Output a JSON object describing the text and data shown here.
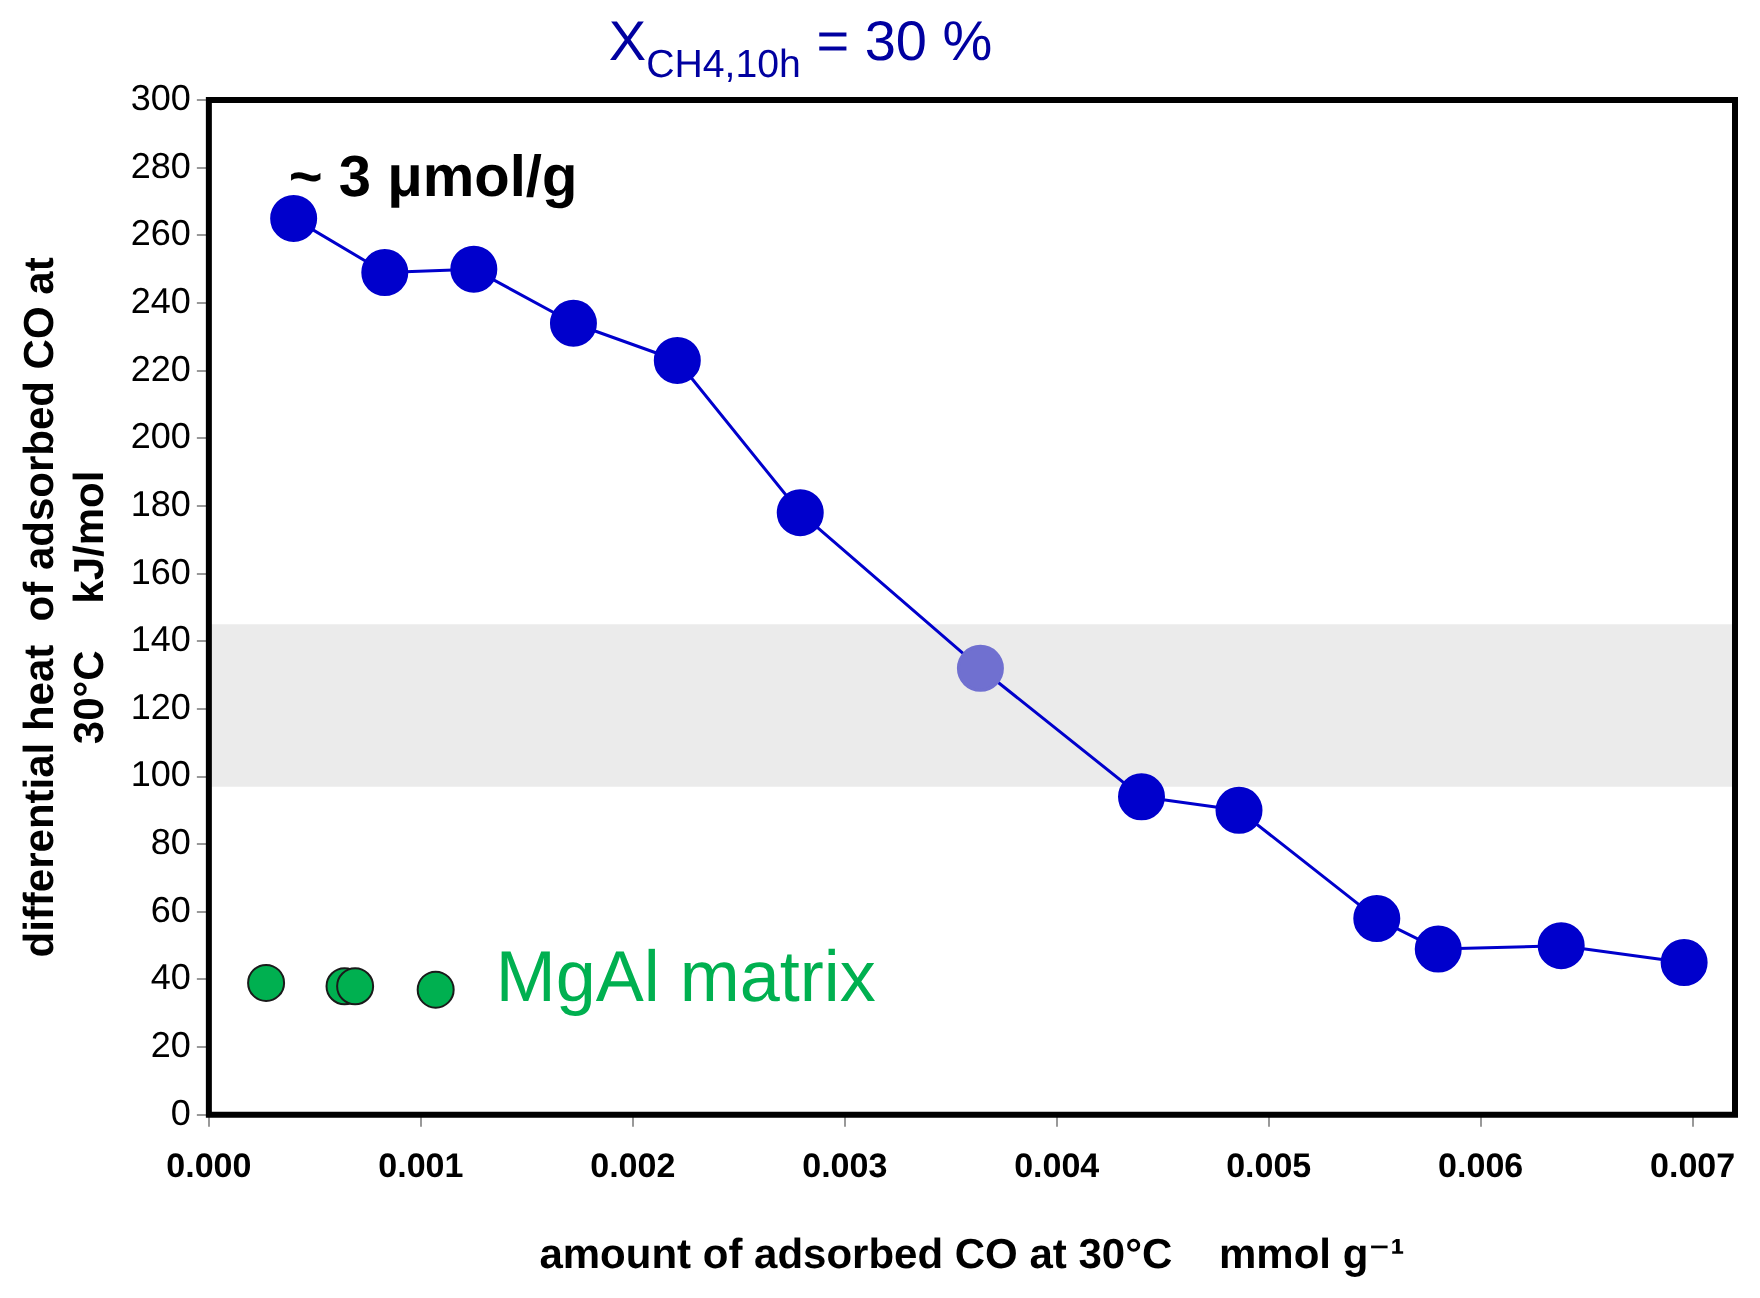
{
  "chart_data": {
    "type": "scatter",
    "xlabel": "amount of adsorbed CO at 30°C    mmol g⁻¹",
    "ylabel": "differential heat  of adsorbed CO at\n30°C    kJ/mol",
    "annotations": [
      "~ 3 μmol/g",
      "X$_{CH4,10h}$ = 30 %"
    ],
    "xlim": [
      0,
      0.0072
    ],
    "xticks": [
      {
        "value": 0,
        "label": "0.000"
      },
      {
        "value": 0.001,
        "label": "0.001"
      },
      {
        "value": 0.002,
        "label": "0.002"
      },
      {
        "value": 0.003,
        "label": "0.003"
      },
      {
        "value": 0.004,
        "label": "0.004"
      },
      {
        "value": 0.005,
        "label": "0.005"
      },
      {
        "value": 0.006,
        "label": "0.006"
      },
      {
        "value": 0.007,
        "label": "0.007"
      }
    ],
    "ylim": [
      0,
      300
    ],
    "yticks": [
      0,
      20,
      40,
      60,
      80,
      100,
      120,
      140,
      160,
      180,
      200,
      220,
      240,
      260,
      280,
      300
    ],
    "bands": [
      {
        "axis": "y",
        "from": 97,
        "to": 145,
        "color": "#ebebeb"
      }
    ],
    "series": [
      {
        "type": "line",
        "color": "#0000cc",
        "colors": [
          "#0000cc",
          "#0000cc",
          "#0000cc",
          "#0000cc",
          "#0000cc",
          "#0000cc",
          "#7070d0",
          "#0000cc",
          "#0000cc",
          "#0000cc",
          "#0000cc",
          "#0000cc",
          "#0000cc"
        ],
        "x": [
          0.0004,
          0.00083,
          0.00125,
          0.00172,
          0.00221,
          0.00279,
          0.00364,
          0.0044,
          0.00486,
          0.00551,
          0.0058,
          0.00638,
          0.00696
        ],
        "values": [
          265,
          249,
          250,
          234,
          223,
          178,
          132,
          94,
          90,
          58,
          49,
          50,
          45
        ]
      },
      {
        "type": "scatter",
        "name": "MgAl matrix",
        "color": "#00b050",
        "x": [
          0.00027,
          0.00064,
          0.00069,
          0.00107
        ],
        "values": [
          39,
          38,
          38,
          37
        ]
      }
    ],
    "marker": "circle",
    "grid": false,
    "legend": false
  }
}
